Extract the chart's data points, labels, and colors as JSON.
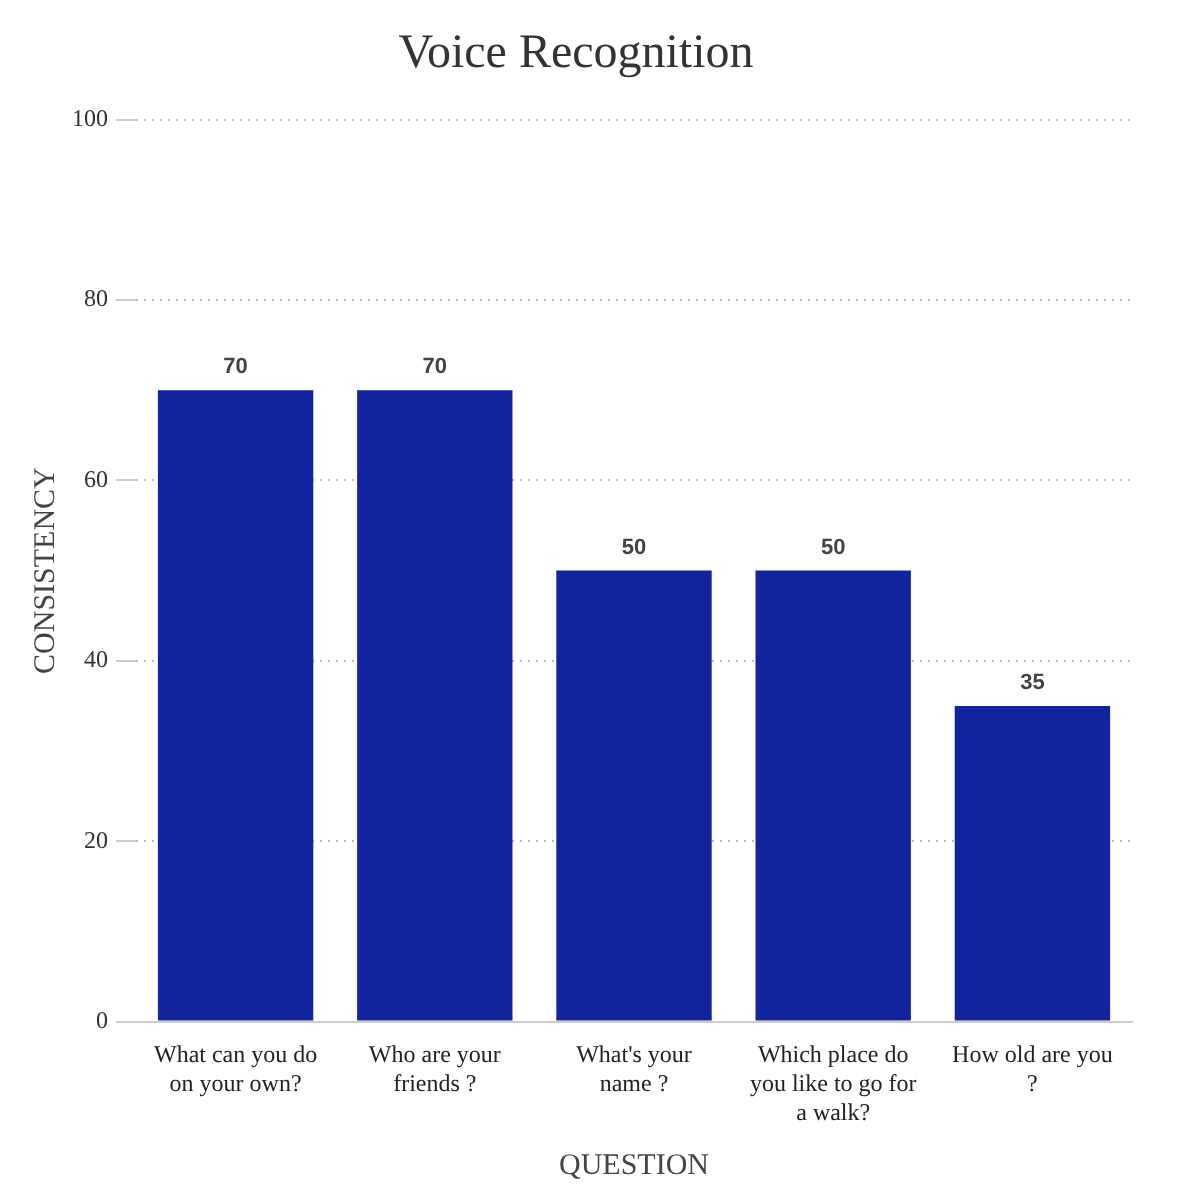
{
  "chart_data": {
    "type": "bar",
    "title": "Voice Recognition",
    "xlabel": "QUESTION",
    "ylabel": "CONSISTENCY",
    "categories": [
      "What can you do on your own?",
      "Who are your friends ?",
      "What's your name ?",
      "Which place do you like to go for a walk?",
      "How old are you ?"
    ],
    "values": [
      70,
      70,
      50,
      50,
      35
    ],
    "color": "#12239e",
    "ylim": [
      0,
      100
    ],
    "yticks": [
      0,
      20,
      40,
      60,
      80,
      100
    ],
    "grid": "y",
    "data_labels": true
  }
}
